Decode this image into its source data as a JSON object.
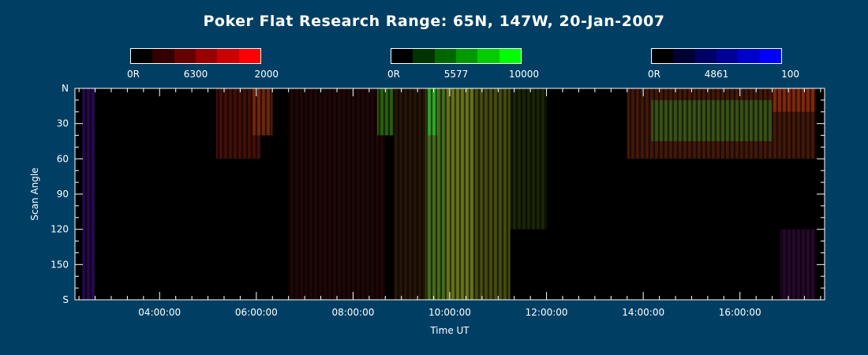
{
  "title": "Poker Flat Research Range: 65N, 147W, 20-Jan-2007",
  "colorbars": [
    {
      "name": "6300",
      "min_label": "0R",
      "mid_label": "6300",
      "max_label": "2000",
      "colors": [
        "#000000",
        "#330000",
        "#660000",
        "#990000",
        "#cc0000",
        "#ff0000"
      ]
    },
    {
      "name": "5577",
      "min_label": "0R",
      "mid_label": "5577",
      "max_label": "10000",
      "colors": [
        "#000000",
        "#003300",
        "#006600",
        "#009900",
        "#00cc00",
        "#00ff00"
      ]
    },
    {
      "name": "4861",
      "min_label": "0R",
      "mid_label": "4861",
      "max_label": "100",
      "colors": [
        "#000000",
        "#000033",
        "#000066",
        "#000099",
        "#0000cc",
        "#0000ff"
      ]
    }
  ],
  "chart_data": {
    "type": "heatmap",
    "title": "Poker Flat Research Range: 65N, 147W, 20-Jan-2007",
    "xlabel": "Time UT",
    "ylabel": "Scan Angle",
    "xlim": [
      "02:15:00",
      "17:45:00"
    ],
    "ylim": [
      0,
      180
    ],
    "x_ticks": [
      "04:00:00",
      "06:00:00",
      "08:00:00",
      "10:00:00",
      "12:00:00",
      "14:00:00",
      "16:00:00"
    ],
    "y_ticks": [
      "N",
      "30",
      "60",
      "90",
      "120",
      "150",
      "S"
    ],
    "y_tick_values": [
      0,
      30,
      60,
      90,
      120,
      150,
      180
    ],
    "data_start": "02:24:00",
    "data_end": "17:34:00",
    "channels": [
      "6300",
      "5577",
      "4861"
    ],
    "regions": [
      {
        "t0": "02:24:00",
        "t1": "02:40:00",
        "a0": 0,
        "a1": 180,
        "color": "#2a0a55"
      },
      {
        "t0": "05:10:00",
        "t1": "06:05:00",
        "a0": 0,
        "a1": 60,
        "color": "#4a1208"
      },
      {
        "t0": "05:55:00",
        "t1": "06:20:00",
        "a0": 0,
        "a1": 40,
        "color": "#7a2a10"
      },
      {
        "t0": "06:40:00",
        "t1": "08:40:00",
        "a0": 0,
        "a1": 180,
        "color": "#240808"
      },
      {
        "t0": "08:30:00",
        "t1": "08:50:00",
        "a0": 0,
        "a1": 40,
        "color": "#2f6a12"
      },
      {
        "t0": "08:50:00",
        "t1": "09:30:00",
        "a0": 0,
        "a1": 180,
        "color": "#2a1808"
      },
      {
        "t0": "09:30:00",
        "t1": "09:55:00",
        "a0": 0,
        "a1": 180,
        "color": "#4f7a1f"
      },
      {
        "t0": "09:33:00",
        "t1": "09:45:00",
        "a0": 0,
        "a1": 40,
        "color": "#33b02a"
      },
      {
        "t0": "09:55:00",
        "t1": "10:30:00",
        "a0": 0,
        "a1": 180,
        "color": "#76821e"
      },
      {
        "t0": "10:30:00",
        "t1": "11:15:00",
        "a0": 0,
        "a1": 180,
        "color": "#4f5512"
      },
      {
        "t0": "11:15:00",
        "t1": "12:00:00",
        "a0": 0,
        "a1": 120,
        "color": "#1e2a08"
      },
      {
        "t0": "13:40:00",
        "t1": "17:34:00",
        "a0": 0,
        "a1": 60,
        "color": "#4a1c0a"
      },
      {
        "t0": "14:10:00",
        "t1": "16:40:00",
        "a0": 10,
        "a1": 45,
        "color": "#3a5a1a"
      },
      {
        "t0": "16:40:00",
        "t1": "17:34:00",
        "a0": 0,
        "a1": 20,
        "color": "#8a2a10"
      },
      {
        "t0": "16:50:00",
        "t1": "17:34:00",
        "a0": 120,
        "a1": 180,
        "color": "#2a0a30"
      }
    ]
  }
}
